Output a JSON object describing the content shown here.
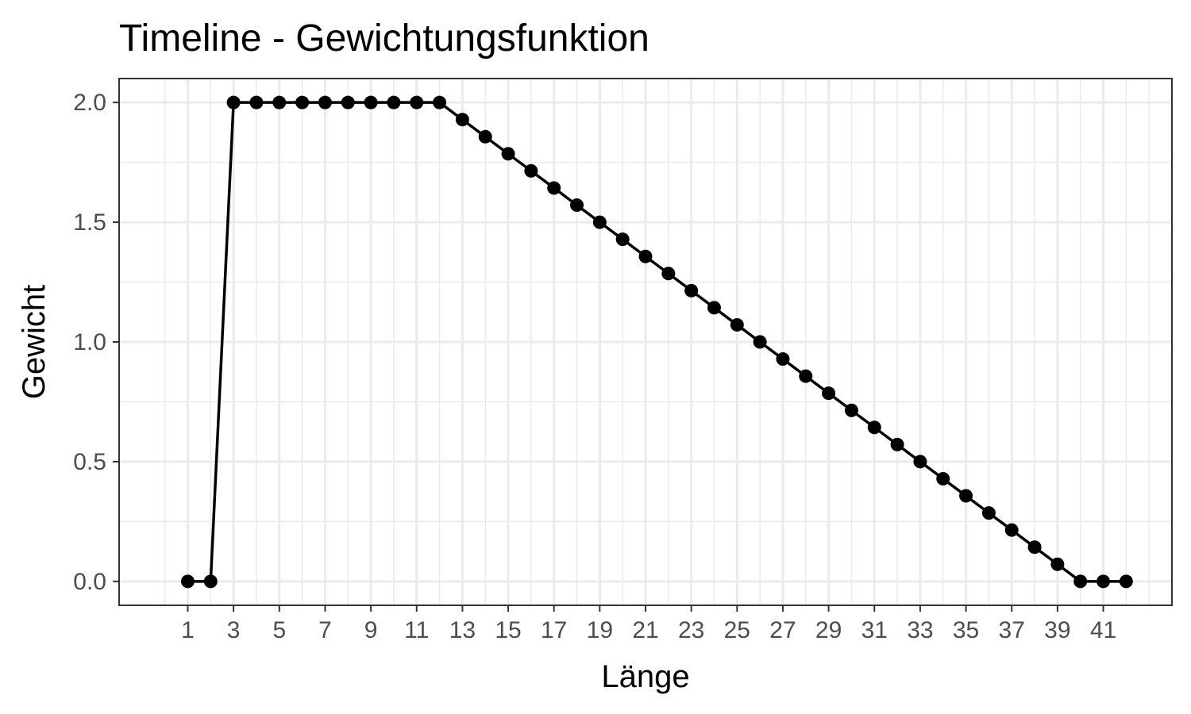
{
  "chart_data": {
    "type": "line",
    "title": "Timeline - Gewichtungsfunktion",
    "xlabel": "Länge",
    "ylabel": "Gewicht",
    "x": [
      1,
      2,
      3,
      4,
      5,
      6,
      7,
      8,
      9,
      10,
      11,
      12,
      13,
      14,
      15,
      16,
      17,
      18,
      19,
      20,
      21,
      22,
      23,
      24,
      25,
      26,
      27,
      28,
      29,
      30,
      31,
      32,
      33,
      34,
      35,
      36,
      37,
      38,
      39,
      40,
      41,
      42
    ],
    "series": [
      {
        "values": [
          0,
          0,
          2,
          2,
          2,
          2,
          2,
          2,
          2,
          2,
          2,
          2,
          1.9286,
          1.8571,
          1.7857,
          1.7143,
          1.6429,
          1.5714,
          1.5,
          1.4286,
          1.3571,
          1.2857,
          1.2143,
          1.1429,
          1.0714,
          1.0,
          0.9286,
          0.8571,
          0.7857,
          0.7143,
          0.6429,
          0.5714,
          0.5,
          0.4286,
          0.3571,
          0.2857,
          0.2143,
          0.1429,
          0.0714,
          0,
          0,
          0
        ]
      }
    ],
    "xticks": [
      1,
      3,
      5,
      7,
      9,
      11,
      13,
      15,
      17,
      19,
      21,
      23,
      25,
      27,
      29,
      31,
      33,
      35,
      37,
      39,
      41
    ],
    "xtick_labels": [
      "1",
      "3",
      "5",
      "7",
      "9",
      "11",
      "13",
      "15",
      "17",
      "19",
      "21",
      "23",
      "25",
      "27",
      "29",
      "31",
      "33",
      "35",
      "37",
      "39",
      "41"
    ],
    "yticks": [
      0,
      0.5,
      1,
      1.5,
      2
    ],
    "ytick_labels": [
      "0.0",
      "0.5",
      "1.0",
      "1.5",
      "2.0"
    ],
    "xlim": [
      -2,
      44
    ],
    "ylim": [
      -0.1,
      2.1
    ],
    "grid": true,
    "legend": "none",
    "colors": {
      "line": "#000000",
      "grid": "#ebebeb",
      "panel_border": "#333333",
      "tick_text": "#4d4d4d"
    }
  }
}
